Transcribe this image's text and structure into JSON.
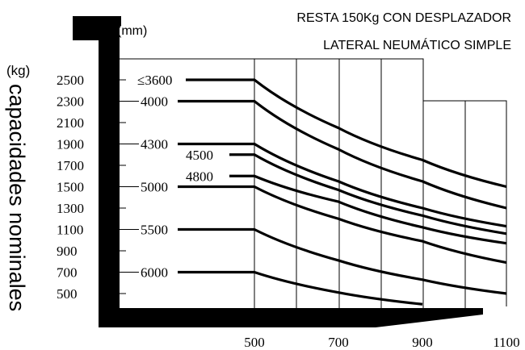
{
  "chart_data": {
    "type": "line",
    "title_lines": [
      "RESTA 150Kg CON DESPLAZADOR",
      "LATERAL NEUMÁTICO SIMPLE"
    ],
    "x_unit": "(mm)",
    "y_unit": "(kg)",
    "ylabel": "capacidades nominales",
    "x_ticks": [
      "500",
      "700",
      "900",
      "1100"
    ],
    "y_ticks": [
      "2500",
      "2300",
      "2100",
      "1900",
      "1700",
      "1500",
      "1300",
      "1100",
      "900",
      "700",
      "500"
    ],
    "xlim": [
      500,
      1100
    ],
    "ylim": [
      500,
      2500
    ],
    "grid": true,
    "series": [
      {
        "name": "≤3600",
        "points": [
          [
            500,
            2500
          ],
          [
            700,
            2050
          ],
          [
            900,
            1750
          ],
          [
            1100,
            1500
          ]
        ]
      },
      {
        "name": "4000",
        "points": [
          [
            500,
            2300
          ],
          [
            700,
            1850
          ],
          [
            900,
            1550
          ],
          [
            1100,
            1300
          ]
        ]
      },
      {
        "name": "4300",
        "points": [
          [
            500,
            1900
          ],
          [
            700,
            1550
          ],
          [
            900,
            1300
          ],
          [
            1100,
            1130
          ]
        ]
      },
      {
        "name": "4500",
        "points": [
          [
            500,
            1800
          ],
          [
            700,
            1470
          ],
          [
            900,
            1230
          ],
          [
            1100,
            1060
          ]
        ]
      },
      {
        "name": "4800",
        "points": [
          [
            500,
            1600
          ],
          [
            700,
            1360
          ],
          [
            900,
            1120
          ],
          [
            1100,
            970
          ]
        ]
      },
      {
        "name": "5000",
        "points": [
          [
            500,
            1500
          ],
          [
            700,
            1200
          ],
          [
            900,
            990
          ],
          [
            1100,
            790
          ]
        ]
      },
      {
        "name": "5500",
        "points": [
          [
            500,
            1100
          ],
          [
            700,
            810
          ],
          [
            900,
            630
          ],
          [
            1100,
            500
          ]
        ]
      },
      {
        "name": "6000",
        "points": [
          [
            500,
            700
          ],
          [
            700,
            510
          ],
          [
            900,
            400
          ]
        ]
      }
    ]
  }
}
